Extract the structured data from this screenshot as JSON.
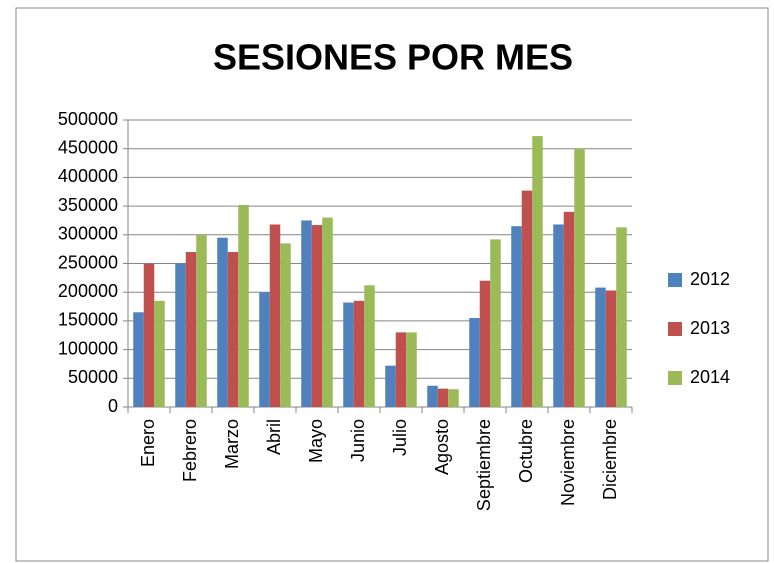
{
  "chart_data": {
    "type": "bar",
    "title": "SESIONES POR MES",
    "categories": [
      "Enero",
      "Febrero",
      "Marzo",
      "Abril",
      "Mayo",
      "Junio",
      "Julio",
      "Agosto",
      "Septiembre",
      "Octubre",
      "Noviembre",
      "Diciembre"
    ],
    "series": [
      {
        "name": "2012",
        "color": "#4f81bd",
        "values": [
          165000,
          250000,
          295000,
          200000,
          325000,
          182000,
          72000,
          37000,
          155000,
          315000,
          318000,
          208000
        ]
      },
      {
        "name": "2013",
        "color": "#c0504d",
        "values": [
          250000,
          270000,
          270000,
          318000,
          317000,
          185000,
          130000,
          32000,
          220000,
          377000,
          340000,
          203000
        ]
      },
      {
        "name": "2014",
        "color": "#9bbb59",
        "values": [
          185000,
          300000,
          352000,
          285000,
          330000,
          212000,
          130000,
          31000,
          292000,
          472000,
          450000,
          313000
        ]
      }
    ],
    "ylim": [
      0,
      500000
    ],
    "yticks": [
      0,
      50000,
      100000,
      150000,
      200000,
      250000,
      300000,
      350000,
      400000,
      450000,
      500000
    ],
    "grid": true,
    "legend": "right"
  }
}
